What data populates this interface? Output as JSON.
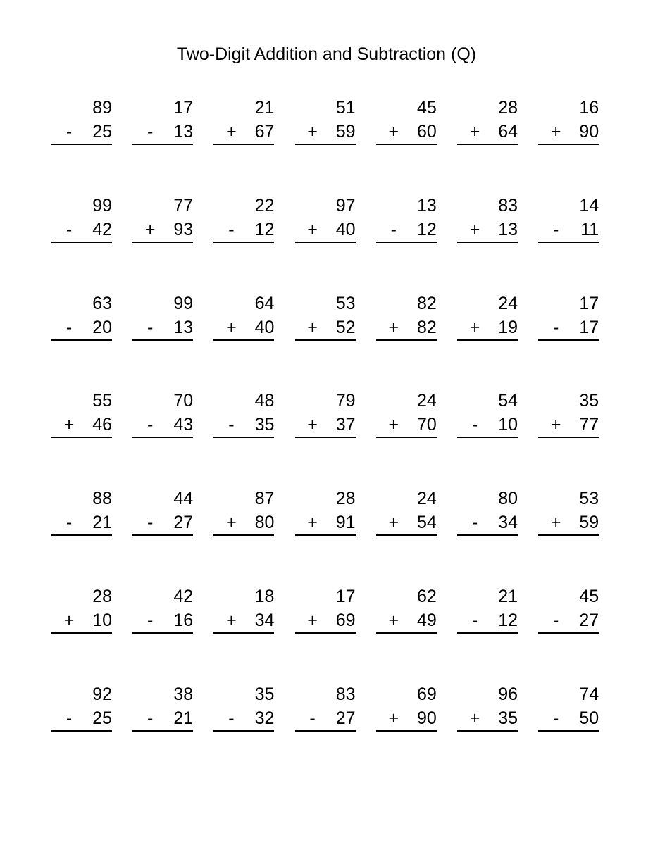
{
  "title": "Two-Digit Addition and Subtraction (Q)",
  "problems": [
    [
      {
        "a": "89",
        "op": "-",
        "b": "25"
      },
      {
        "a": "17",
        "op": "-",
        "b": "13"
      },
      {
        "a": "21",
        "op": "+",
        "b": "67"
      },
      {
        "a": "51",
        "op": "+",
        "b": "59"
      },
      {
        "a": "45",
        "op": "+",
        "b": "60"
      },
      {
        "a": "28",
        "op": "+",
        "b": "64"
      },
      {
        "a": "16",
        "op": "+",
        "b": "90"
      }
    ],
    [
      {
        "a": "99",
        "op": "-",
        "b": "42"
      },
      {
        "a": "77",
        "op": "+",
        "b": "93"
      },
      {
        "a": "22",
        "op": "-",
        "b": "12"
      },
      {
        "a": "97",
        "op": "+",
        "b": "40"
      },
      {
        "a": "13",
        "op": "-",
        "b": "12"
      },
      {
        "a": "83",
        "op": "+",
        "b": "13"
      },
      {
        "a": "14",
        "op": "-",
        "b": "11"
      }
    ],
    [
      {
        "a": "63",
        "op": "-",
        "b": "20"
      },
      {
        "a": "99",
        "op": "-",
        "b": "13"
      },
      {
        "a": "64",
        "op": "+",
        "b": "40"
      },
      {
        "a": "53",
        "op": "+",
        "b": "52"
      },
      {
        "a": "82",
        "op": "+",
        "b": "82"
      },
      {
        "a": "24",
        "op": "+",
        "b": "19"
      },
      {
        "a": "17",
        "op": "-",
        "b": "17"
      }
    ],
    [
      {
        "a": "55",
        "op": "+",
        "b": "46"
      },
      {
        "a": "70",
        "op": "-",
        "b": "43"
      },
      {
        "a": "48",
        "op": "-",
        "b": "35"
      },
      {
        "a": "79",
        "op": "+",
        "b": "37"
      },
      {
        "a": "24",
        "op": "+",
        "b": "70"
      },
      {
        "a": "54",
        "op": "-",
        "b": "10"
      },
      {
        "a": "35",
        "op": "+",
        "b": "77"
      }
    ],
    [
      {
        "a": "88",
        "op": "-",
        "b": "21"
      },
      {
        "a": "44",
        "op": "-",
        "b": "27"
      },
      {
        "a": "87",
        "op": "+",
        "b": "80"
      },
      {
        "a": "28",
        "op": "+",
        "b": "91"
      },
      {
        "a": "24",
        "op": "+",
        "b": "54"
      },
      {
        "a": "80",
        "op": "-",
        "b": "34"
      },
      {
        "a": "53",
        "op": "+",
        "b": "59"
      }
    ],
    [
      {
        "a": "28",
        "op": "+",
        "b": "10"
      },
      {
        "a": "42",
        "op": "-",
        "b": "16"
      },
      {
        "a": "18",
        "op": "+",
        "b": "34"
      },
      {
        "a": "17",
        "op": "+",
        "b": "69"
      },
      {
        "a": "62",
        "op": "+",
        "b": "49"
      },
      {
        "a": "21",
        "op": "-",
        "b": "12"
      },
      {
        "a": "45",
        "op": "-",
        "b": "27"
      }
    ],
    [
      {
        "a": "92",
        "op": "-",
        "b": "25"
      },
      {
        "a": "38",
        "op": "-",
        "b": "21"
      },
      {
        "a": "35",
        "op": "-",
        "b": "32"
      },
      {
        "a": "83",
        "op": "-",
        "b": "27"
      },
      {
        "a": "69",
        "op": "+",
        "b": "90"
      },
      {
        "a": "96",
        "op": "+",
        "b": "35"
      },
      {
        "a": "74",
        "op": "-",
        "b": "50"
      }
    ]
  ]
}
